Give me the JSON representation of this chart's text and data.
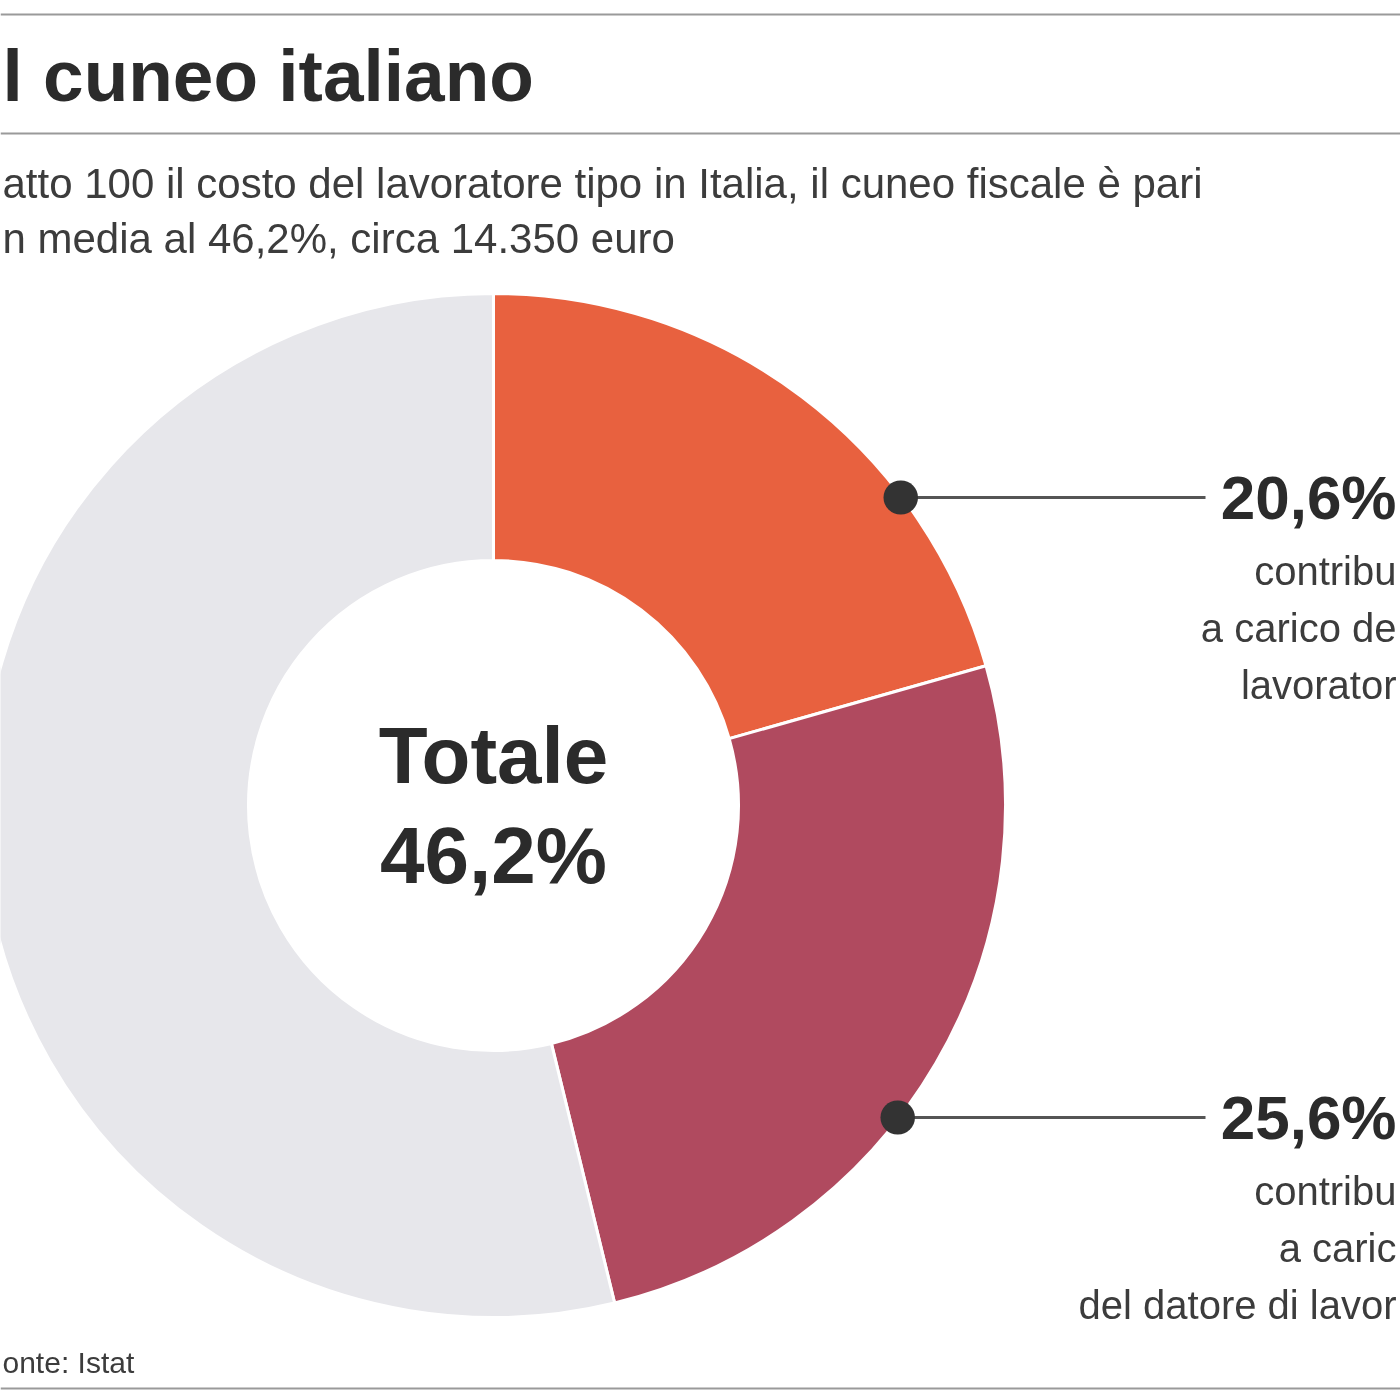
{
  "chart_data": {
    "type": "donut",
    "title": "l cuneo italiano",
    "subtitle": "atto 100 il costo del lavoratore tipo in Italia, il cuneo fiscale è pari\nn media al 46,2%, circa 14.350 euro",
    "categories": [
      "contribu\na carico de\nlavorator",
      "contribu\na caric\ndel datore di lavor",
      null
    ],
    "values": [
      20.6,
      25.6,
      53.8
    ],
    "colors": [
      "#e8613f",
      "#b04a5f",
      "#e7e7eb"
    ],
    "value_labels": [
      "20,6%",
      "25,6%",
      null
    ],
    "annotations": [
      "Totale\n46,2%",
      "onte: Istat"
    ]
  }
}
